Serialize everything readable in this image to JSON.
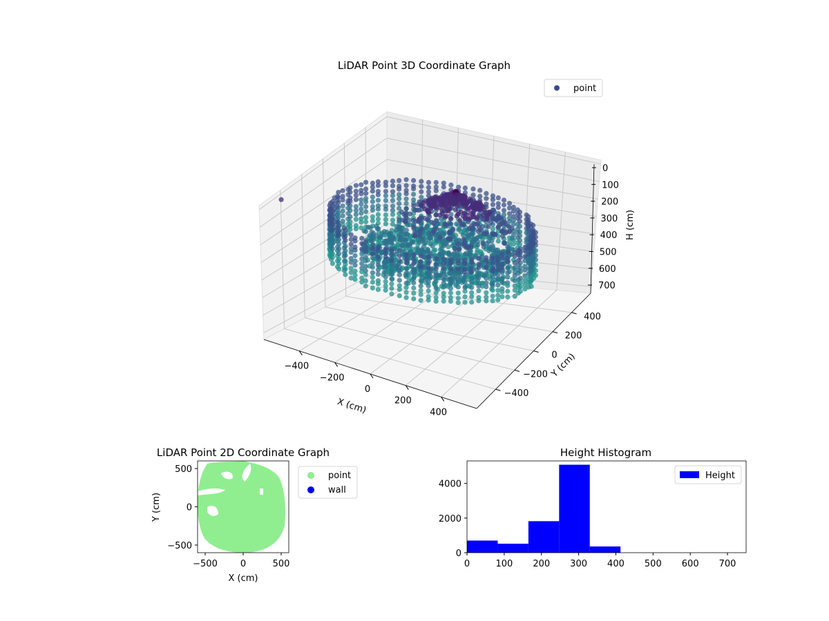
{
  "chart_data": [
    {
      "type": "scatter",
      "subtype": "3d",
      "title": "LiDAR Point 3D Coordinate Graph",
      "xlabel": "X (cm)",
      "ylabel": "Y (cm)",
      "zlabel": "H (cm)",
      "xlim": [
        -600,
        600
      ],
      "ylim": [
        -600,
        600
      ],
      "zlim": [
        750,
        0
      ],
      "xticks": [
        "−400",
        "−200",
        "0",
        "200",
        "400"
      ],
      "yticks": [
        "−400",
        "−200",
        "0",
        "200",
        "400"
      ],
      "zticks": [
        "0",
        "100",
        "200",
        "300",
        "400",
        "500",
        "600",
        "700"
      ],
      "colormap": "viridis",
      "grid": true,
      "legend": {
        "position": "top-right",
        "entries": [
          "point"
        ]
      },
      "series": [
        {
          "name": "point",
          "color": "#3b4b8c",
          "shape": "ring with roof structure",
          "ring_radius": 500,
          "ring_height_range": [
            200,
            400
          ],
          "roof_height_range": [
            100,
            300
          ]
        }
      ]
    },
    {
      "type": "scatter",
      "title": "LiDAR Point 2D Coordinate Graph",
      "xlabel": "X (cm)",
      "ylabel": "Y (cm)",
      "xlim": [
        -600,
        600
      ],
      "ylim": [
        -600,
        600
      ],
      "xticks": [
        "−500",
        "0",
        "500"
      ],
      "yticks": [
        "500",
        "0",
        "−500"
      ],
      "legend": {
        "position": "outside-right",
        "entries": [
          "point",
          "wall"
        ]
      },
      "series": [
        {
          "name": "point",
          "color": "#90ee90"
        },
        {
          "name": "wall",
          "color": "#0000ee"
        }
      ]
    },
    {
      "type": "bar",
      "subtype": "histogram",
      "title": "Height Histogram",
      "xlim": [
        0,
        750
      ],
      "ylim": [
        0,
        5300
      ],
      "xticks": [
        "0",
        "100",
        "200",
        "300",
        "400",
        "500",
        "600",
        "700"
      ],
      "yticks": [
        "0",
        "2000",
        "4000"
      ],
      "legend": {
        "position": "top-right",
        "entries": [
          "Height"
        ]
      },
      "series": [
        {
          "name": "Height",
          "color": "#0000ff",
          "bin_edges": [
            0,
            82.5,
            165,
            247.5,
            330,
            412.5,
            495,
            577.5,
            660,
            742.5,
            825
          ],
          "values": [
            700,
            520,
            1820,
            5080,
            360,
            0,
            0,
            0,
            0,
            0
          ]
        }
      ]
    }
  ]
}
